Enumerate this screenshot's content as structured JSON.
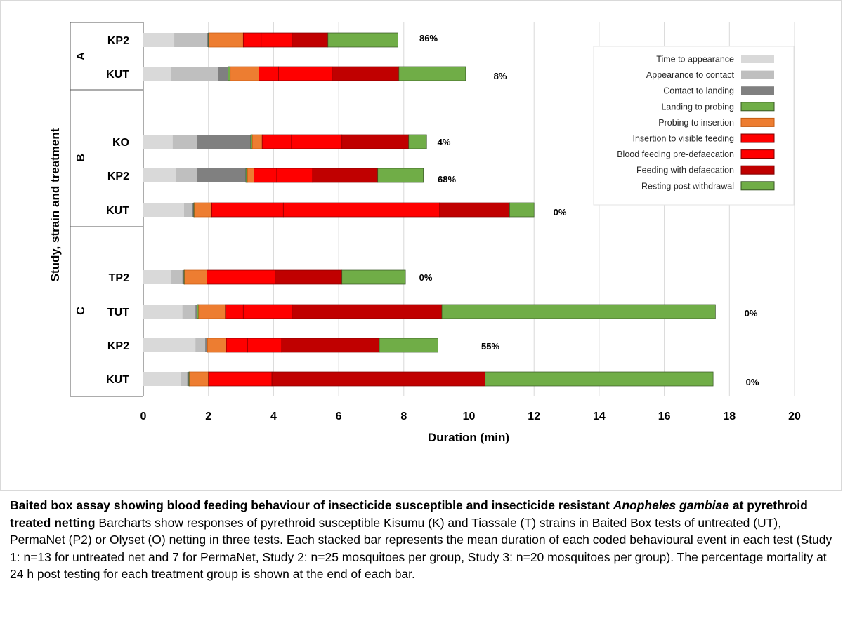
{
  "chart_data": {
    "type": "bar",
    "orientation": "horizontal",
    "stacked": true,
    "xlabel": "Duration (min)",
    "ylabel": "Study, strain and treatment",
    "xlim": [
      0,
      20
    ],
    "xticks": [
      0,
      2,
      4,
      6,
      8,
      10,
      12,
      14,
      16,
      18,
      20
    ],
    "grid": "vertical",
    "legend_position": "top-right",
    "series": [
      {
        "name": "Time to appearance",
        "color": "#d9d9d9"
      },
      {
        "name": "Appearance to contact",
        "color": "#bfbfbf"
      },
      {
        "name": "Contact to landing",
        "color": "#808080"
      },
      {
        "name": "Landing to probing",
        "color": "#70ad47"
      },
      {
        "name": "Probing to insertion",
        "color": "#ed7d31"
      },
      {
        "name": "Insertion to visible feeding",
        "color": "#ff0000"
      },
      {
        "name": "Blood feeding pre-defaecation",
        "color": "#ff0000"
      },
      {
        "name": "Feeding with defaecation",
        "color": "#c00000"
      },
      {
        "name": "Resting post withdrawal",
        "color": "#70ad47"
      }
    ],
    "groups": [
      {
        "name": "A",
        "rows": [
          {
            "label": "KP2",
            "mortality": "86%",
            "segments": [
              0.95,
              1.0,
              0.05,
              0.02,
              1.05,
              0.55,
              0.95,
              1.1,
              2.15
            ]
          },
          {
            "label": "KUT",
            "mortality": "8%",
            "segments": [
              0.85,
              1.45,
              0.3,
              0.07,
              0.88,
              0.6,
              1.65,
              2.05,
              2.05
            ]
          }
        ]
      },
      {
        "name": "B",
        "rows": [
          {
            "label": "KO",
            "mortality": "4%",
            "segments": [
              0.9,
              0.75,
              1.65,
              0.05,
              0.3,
              0.9,
              1.55,
              2.05,
              0.55
            ]
          },
          {
            "label": "KP2",
            "mortality": "68%",
            "segments": [
              1.0,
              0.65,
              1.5,
              0.05,
              0.2,
              0.7,
              1.1,
              2.0,
              1.4
            ]
          },
          {
            "label": "KUT",
            "mortality": "0%",
            "segments": [
              1.25,
              0.25,
              0.05,
              0.02,
              0.53,
              2.2,
              4.8,
              2.15,
              0.75
            ]
          }
        ]
      },
      {
        "name": "C",
        "rows": [
          {
            "label": "TP2",
            "mortality": "0%",
            "segments": [
              0.85,
              0.35,
              0.05,
              0.02,
              0.68,
              0.5,
              1.6,
              2.05,
              1.95
            ]
          },
          {
            "label": "TUT",
            "mortality": "0%",
            "segments": [
              1.2,
              0.4,
              0.05,
              0.05,
              0.82,
              0.55,
              1.5,
              4.6,
              8.4
            ]
          },
          {
            "label": "KP2",
            "mortality": "55%",
            "segments": [
              1.6,
              0.3,
              0.05,
              0.02,
              0.58,
              0.65,
              1.05,
              3.0,
              1.8
            ]
          },
          {
            "label": "KUT",
            "mortality": "0%",
            "segments": [
              1.15,
              0.2,
              0.05,
              0.02,
              0.58,
              0.75,
              1.2,
              6.55,
              7.0
            ]
          }
        ]
      }
    ]
  },
  "caption": {
    "bold_prefix": "Baited box assay showing blood feeding behaviour of insecticide susceptible and insecticide resistant ",
    "bold_italic": "Anopheles gambiae",
    "bold_suffix": " at pyrethroid treated netting",
    "body": "  Barcharts show responses of pyrethroid susceptible Kisumu (K) and Tiassale (T) strains in Baited Box tests of untreated (UT), PermaNet (P2) or Olyset (O) netting in three tests. Each stacked bar represents the mean duration of each coded behavioural event in each test (Study 1: n=13 for untreated net and 7 for PermaNet, Study 2: n=25 mosquitoes per group, Study 3: n=20 mosquitoes per group). The percentage mortality at 24 h post testing for each treatment group is shown at the end of each bar."
  }
}
